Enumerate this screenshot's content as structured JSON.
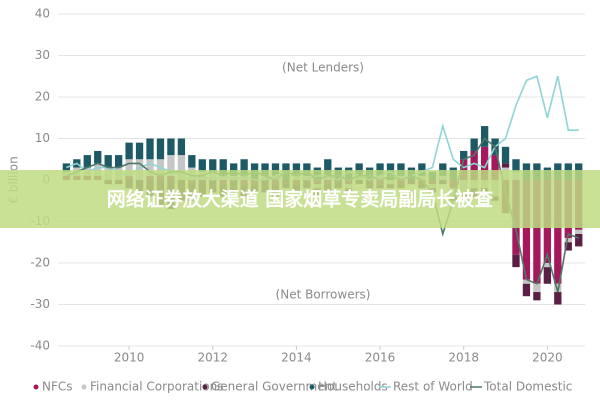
{
  "chart_data": {
    "type": "stacked_bar_line",
    "y_axis_label": "€ billion",
    "annotations": [
      "(Net Lenders)",
      "(Net Borrowers)"
    ],
    "x": [
      2008.5,
      2008.75,
      2009,
      2009.25,
      2009.5,
      2009.75,
      2010,
      2010.25,
      2010.5,
      2010.75,
      2011,
      2011.25,
      2011.5,
      2011.75,
      2012,
      2012.25,
      2012.5,
      2012.75,
      2013,
      2013.25,
      2013.5,
      2013.75,
      2014,
      2014.25,
      2014.5,
      2014.75,
      2015,
      2015.25,
      2015.5,
      2015.75,
      2016,
      2016.25,
      2016.5,
      2016.75,
      2017,
      2017.25,
      2017.5,
      2017.75,
      2018,
      2018.25,
      2018.5,
      2018.75,
      2019,
      2019.25,
      2019.5,
      2019.75,
      2020,
      2020.25,
      2020.5,
      2020.75
    ],
    "xlim": [
      2008.3,
      2020.9
    ],
    "xticks": [
      2010,
      2012,
      2014,
      2016,
      2018,
      2020
    ],
    "ylim": [
      -40,
      40
    ],
    "yticks": [
      -40,
      -30,
      -20,
      -10,
      0,
      10,
      20,
      30,
      40
    ],
    "grid": true,
    "series": [
      {
        "name": "NFCs",
        "kind": "bar",
        "color": "#a3195b",
        "values": [
          1,
          1,
          1,
          1,
          0,
          0,
          1,
          0,
          1,
          1,
          1,
          0,
          -1,
          0,
          0,
          -1,
          0,
          -1,
          -1,
          0,
          -1,
          0,
          -1,
          0,
          -1,
          -1,
          0,
          -1,
          0,
          0,
          -1,
          0,
          -1,
          0,
          -1,
          -1,
          0,
          -2,
          5,
          7,
          8,
          6,
          -8,
          -18,
          -24,
          -25,
          -20,
          -25,
          -14,
          -12
        ]
      },
      {
        "name": "Financial Corporations",
        "kind": "bar",
        "color": "#c6c6c6",
        "values": [
          1,
          2,
          2,
          3,
          3,
          3,
          4,
          5,
          4,
          4,
          5,
          6,
          3,
          2,
          2,
          1,
          1,
          1,
          0,
          1,
          1,
          0,
          1,
          1,
          -1,
          1,
          0,
          -1,
          1,
          0,
          1,
          -1,
          1,
          0,
          1,
          -1,
          1,
          -2,
          -3,
          -2,
          -2,
          -4,
          3,
          2,
          -1,
          -2,
          -1,
          -2,
          -1,
          -1
        ]
      },
      {
        "name": "General Government",
        "kind": "bar",
        "color": "#5b1f45",
        "values": [
          0,
          0,
          0,
          0,
          -1,
          -1,
          -2,
          -3,
          -4,
          -6,
          -7,
          -5,
          -4,
          -4,
          -3,
          -3,
          -3,
          -3,
          -2,
          -3,
          -3,
          -2,
          -2,
          -2,
          -2,
          -2,
          -2,
          -1,
          -1,
          -2,
          -1,
          -1,
          -1,
          -1,
          -1,
          -1,
          -1,
          -1,
          -1,
          -2,
          -1,
          -1,
          1,
          -3,
          -3,
          -2,
          -4,
          -3,
          -2,
          -3
        ]
      },
      {
        "name": "Households",
        "kind": "bar",
        "color": "#1d5a66",
        "values": [
          2,
          2,
          3,
          3,
          3,
          3,
          4,
          4,
          5,
          5,
          4,
          4,
          3,
          3,
          3,
          4,
          3,
          4,
          4,
          3,
          3,
          4,
          3,
          3,
          3,
          4,
          3,
          3,
          3,
          3,
          3,
          4,
          3,
          3,
          3,
          2,
          3,
          3,
          2,
          3,
          5,
          4,
          4,
          3,
          4,
          4,
          3,
          4,
          4,
          4
        ]
      },
      {
        "name": "Rest of World",
        "kind": "line",
        "color": "#8fd4d6",
        "values": [
          3,
          4,
          2,
          3,
          3,
          2,
          1,
          3,
          4,
          3,
          2,
          1,
          0,
          1,
          0,
          1,
          0,
          1,
          0,
          0,
          1,
          2,
          1,
          0,
          1,
          1,
          0,
          2,
          1,
          0,
          1,
          2,
          0,
          1,
          2,
          3,
          13,
          5,
          3,
          4,
          3,
          8,
          10,
          18,
          24,
          25,
          15,
          25,
          12,
          12
        ]
      },
      {
        "name": "Total Domestic",
        "kind": "line",
        "color": "#4c7868",
        "values": [
          1,
          2,
          3,
          4,
          3,
          3,
          4,
          4,
          2,
          1,
          2,
          2,
          1,
          1,
          2,
          1,
          2,
          1,
          2,
          1,
          0,
          2,
          1,
          2,
          0,
          1,
          1,
          0,
          1,
          1,
          0,
          1,
          0,
          1,
          0,
          -3,
          -13,
          -5,
          5,
          6,
          10,
          8,
          -3,
          -12,
          -24,
          -25,
          -18,
          -27,
          -13,
          -14
        ]
      }
    ]
  },
  "banner": {
    "text": "网络证券放大渠道 国家烟草专卖局副局长被查"
  }
}
